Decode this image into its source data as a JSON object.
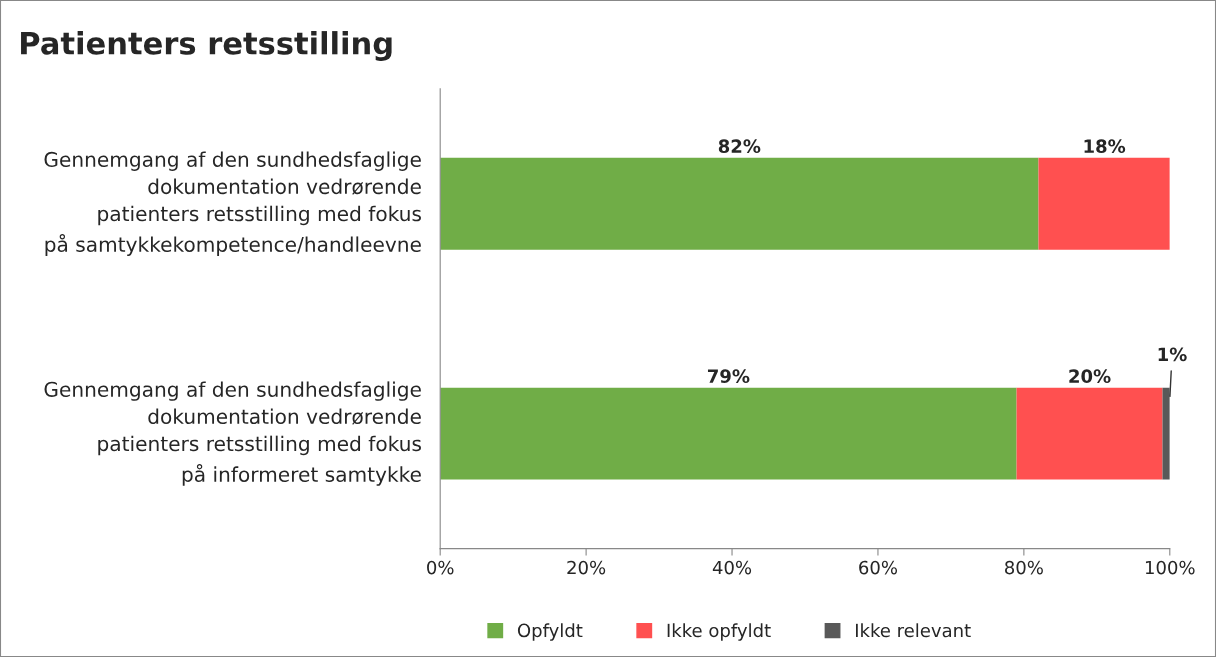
{
  "chart_data": {
    "type": "bar",
    "orientation": "horizontal",
    "stacked": true,
    "title": "Patienters retsstilling",
    "categories": [
      "Gennemgang af den sundhedsfaglige dokumentation vedrørende patienters retsstilling med fokus på samtykkekompetence/handleevne",
      "Gennemgang af den sundhedsfaglige dokumentation vedrørende patienters retsstilling med fokus på informeret samtykke"
    ],
    "series": [
      {
        "name": "Opfyldt",
        "color": "#70ad47",
        "values": [
          82,
          79
        ],
        "value_labels": [
          "82%",
          "79%"
        ]
      },
      {
        "name": "Ikke opfyldt",
        "color": "#ff5050",
        "values": [
          18,
          20
        ],
        "value_labels": [
          "18%",
          "20%"
        ]
      },
      {
        "name": "Ikke relevant",
        "color": "#595959",
        "values": [
          null,
          1
        ],
        "value_labels": [
          null,
          "1%"
        ]
      }
    ],
    "xlim": [
      0,
      100
    ],
    "xticks": [
      {
        "value": 0,
        "label": "0%"
      },
      {
        "value": 20,
        "label": "20%"
      },
      {
        "value": 40,
        "label": "40%"
      },
      {
        "value": 60,
        "label": "60%"
      },
      {
        "value": 80,
        "label": "80%"
      },
      {
        "value": 100,
        "label": "100%"
      }
    ],
    "grid": false,
    "legend": "bottom"
  }
}
